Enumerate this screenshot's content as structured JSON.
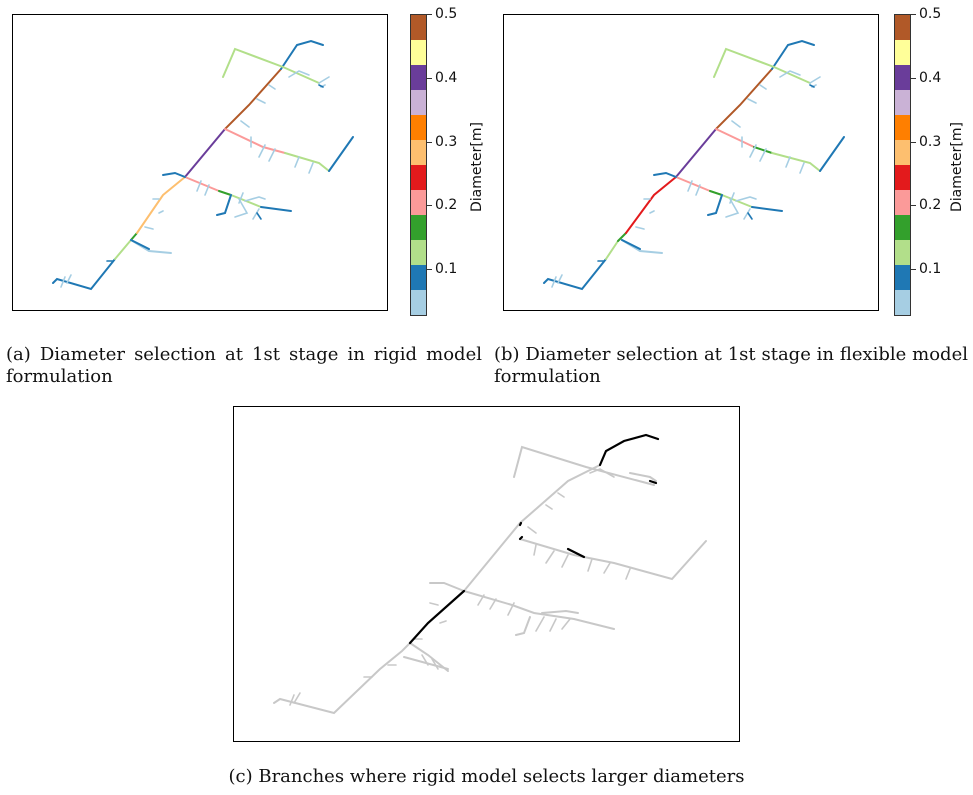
{
  "colorbar": {
    "label": "Diameter[m]",
    "ticks": [
      "0.5",
      "0.4",
      "0.3",
      "0.2",
      "0.1"
    ],
    "colors": [
      "#a6cee3",
      "#1f78b4",
      "#b2df8a",
      "#33a02c",
      "#fb9a99",
      "#e31a1c",
      "#fdbf6f",
      "#ff7f00",
      "#cab2d6",
      "#6a3d9a",
      "#ffff99",
      "#b15928"
    ]
  },
  "captions": {
    "a": "(a) Diameter selection at 1st stage in rigid model formulation",
    "b": "(b) Diameter selection at 1st stage in flexible model formulation",
    "c": "(c) Branches where rigid model selects larger diameters"
  },
  "diagram_colors": {
    "gray": "#c8c8c8",
    "highlight": "#000000"
  }
}
